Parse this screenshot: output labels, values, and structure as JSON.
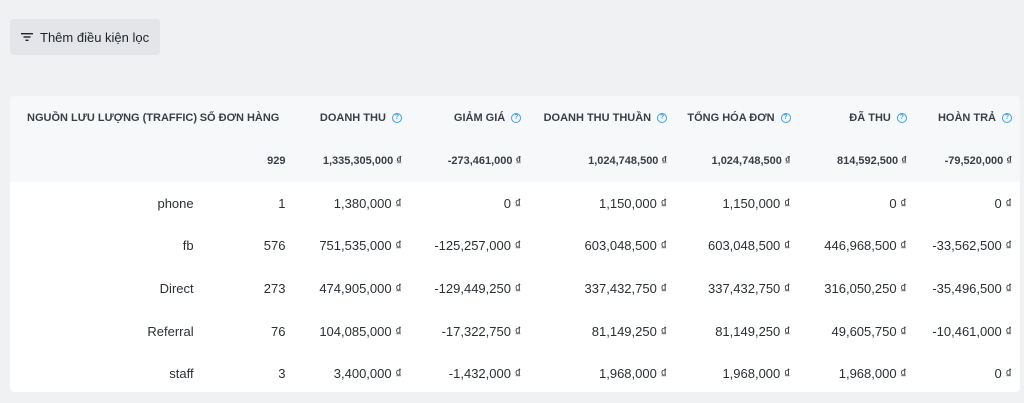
{
  "toolbar": {
    "filter_label": "Thêm điều kiện lọc",
    "filter_icon": "filter-icon"
  },
  "colors": {
    "help_icon": "#3aa0e8",
    "background": "#f0f1f3"
  },
  "table": {
    "headers": [
      "NGUỒN LƯU LƯỢNG (TRAFFIC)",
      "SỐ ĐƠN HÀNG",
      "DOANH THU",
      "GIẢM GIÁ",
      "DOANH THU THUẦN",
      "TỔNG HÓA ĐƠN",
      "ĐÃ THU",
      "HOÀN TRẢ"
    ],
    "totals": [
      "",
      "929",
      "1,335,305,000 ₫",
      "-273,461,000 ₫",
      "1,024,748,500 ₫",
      "1,024,748,500 ₫",
      "814,592,500 ₫",
      "-79,520,000 ₫"
    ],
    "rows": [
      [
        "phone",
        "1",
        "1,380,000 ₫",
        "0 ₫",
        "1,150,000 ₫",
        "1,150,000 ₫",
        "0 ₫",
        "0 ₫"
      ],
      [
        "fb",
        "576",
        "751,535,000 ₫",
        "-125,257,000 ₫",
        "603,048,500 ₫",
        "603,048,500 ₫",
        "446,968,500 ₫",
        "-33,562,500 ₫"
      ],
      [
        "Direct",
        "273",
        "474,905,000 ₫",
        "-129,449,250 ₫",
        "337,432,750 ₫",
        "337,432,750 ₫",
        "316,050,250 ₫",
        "-35,496,500 ₫"
      ],
      [
        "Referral",
        "76",
        "104,085,000 ₫",
        "-17,322,750 ₫",
        "81,149,250 ₫",
        "81,149,250 ₫",
        "49,605,750 ₫",
        "-10,461,000 ₫"
      ],
      [
        "staff",
        "3",
        "3,400,000 ₫",
        "-1,432,000 ₫",
        "1,968,000 ₫",
        "1,968,000 ₫",
        "1,968,000 ₫",
        "0 ₫"
      ]
    ]
  }
}
